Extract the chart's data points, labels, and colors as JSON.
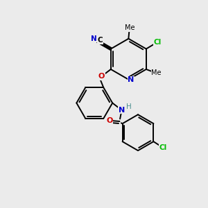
{
  "background_color": "#ebebeb",
  "atom_colors": {
    "C": "#000000",
    "N": "#0000cc",
    "O": "#cc0000",
    "Cl": "#00bb00",
    "H": "#4a9090"
  },
  "bond_color": "#000000",
  "figsize": [
    3.0,
    3.0
  ],
  "dpi": 100,
  "xlim": [
    0,
    10
  ],
  "ylim": [
    0,
    10
  ]
}
